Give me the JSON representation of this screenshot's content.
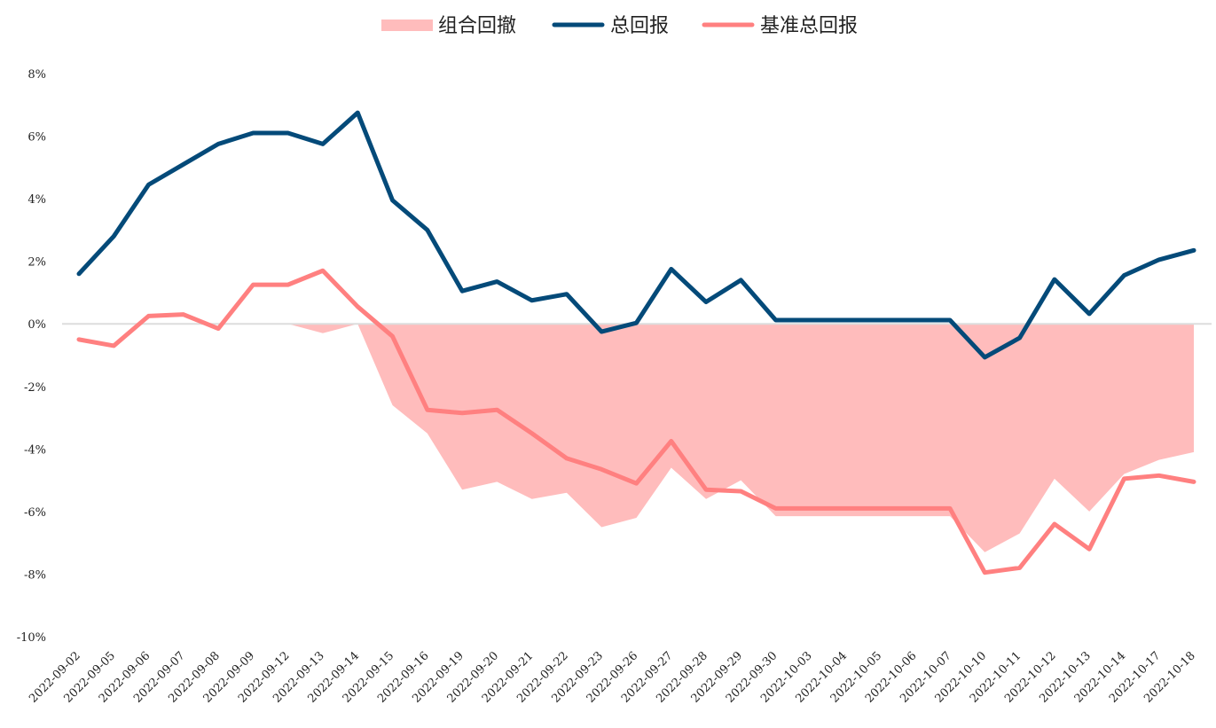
{
  "chart_data": {
    "type": "line",
    "title": "",
    "xlabel": "",
    "ylabel": "",
    "ylim": [
      -10,
      8
    ],
    "yticks": [
      8,
      6,
      4,
      2,
      0,
      -2,
      -4,
      -6,
      -8,
      -10
    ],
    "ytick_labels": [
      "8%",
      "6%",
      "4%",
      "2%",
      "0%",
      "-2%",
      "-4%",
      "-6%",
      "-8%",
      "-10%"
    ],
    "grid": false,
    "legend_position": "top-center",
    "x": [
      "2022-09-02",
      "2022-09-05",
      "2022-09-06",
      "2022-09-07",
      "2022-09-08",
      "2022-09-09",
      "2022-09-12",
      "2022-09-13",
      "2022-09-14",
      "2022-09-15",
      "2022-09-16",
      "2022-09-19",
      "2022-09-20",
      "2022-09-21",
      "2022-09-22",
      "2022-09-23",
      "2022-09-26",
      "2022-09-27",
      "2022-09-28",
      "2022-09-29",
      "2022-09-30",
      "2022-10-03",
      "2022-10-04",
      "2022-10-05",
      "2022-10-06",
      "2022-10-07",
      "2022-10-10",
      "2022-10-11",
      "2022-10-12",
      "2022-10-13",
      "2022-10-14",
      "2022-10-17",
      "2022-10-18"
    ],
    "series": [
      {
        "name": "组合回撤",
        "kind": "area",
        "color": "#ffbcbc",
        "values": [
          0,
          0,
          0,
          0,
          0,
          0,
          0,
          -0.3,
          0,
          -2.6,
          -3.5,
          -5.3,
          -5.05,
          -5.6,
          -5.4,
          -6.5,
          -6.2,
          -4.6,
          -5.6,
          -5.0,
          -6.15,
          -6.15,
          -6.15,
          -6.15,
          -6.15,
          -6.15,
          -7.3,
          -6.7,
          -4.95,
          -6.0,
          -4.8,
          -4.35,
          -4.1
        ]
      },
      {
        "name": "总回报",
        "kind": "line",
        "color": "#044a79",
        "values": [
          1.6,
          2.8,
          4.45,
          5.1,
          5.75,
          6.1,
          6.1,
          5.75,
          6.75,
          3.95,
          3.0,
          1.05,
          1.35,
          0.75,
          0.95,
          -0.25,
          0.03,
          1.75,
          0.7,
          1.4,
          0.12,
          0.12,
          0.12,
          0.12,
          0.12,
          0.12,
          -1.07,
          -0.45,
          1.42,
          0.32,
          1.55,
          2.05,
          2.35
        ]
      },
      {
        "name": "基准总回报",
        "kind": "line",
        "color": "#ff8080",
        "values": [
          -0.5,
          -0.7,
          0.25,
          0.3,
          -0.15,
          1.25,
          1.25,
          1.7,
          0.55,
          -0.4,
          -2.75,
          -2.85,
          -2.75,
          -3.5,
          -4.3,
          -4.65,
          -5.1,
          -3.75,
          -5.3,
          -5.35,
          -5.9,
          -5.9,
          -5.9,
          -5.9,
          -5.9,
          -5.9,
          -7.95,
          -7.8,
          -6.4,
          -7.2,
          -4.95,
          -4.85,
          -5.05
        ]
      }
    ],
    "baseline_color": "#dddddd"
  }
}
